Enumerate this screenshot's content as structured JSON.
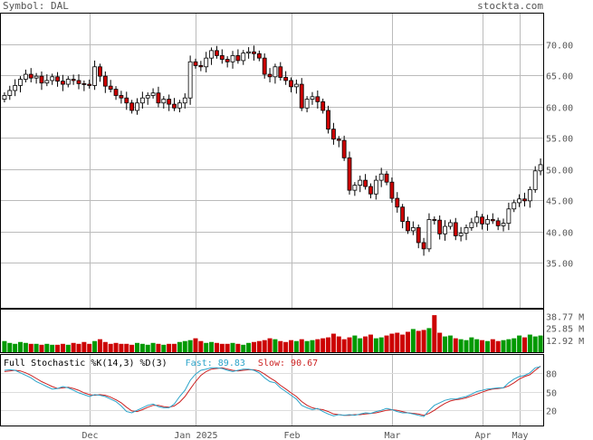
{
  "header": {
    "symbol_label": "Symbol: DAL",
    "site": "stockta.com"
  },
  "stochastic": {
    "label": "Full Stochastic %K(14,3) %D(3)",
    "fast_label": "Fast: 89.83",
    "slow_label": "Slow: 90.67",
    "levels": [
      "80",
      "50",
      "20"
    ]
  },
  "colors": {
    "up": "#ffffff",
    "down": "#cc0000",
    "vol_up": "#009900",
    "vol_down": "#cc0000",
    "fast": "#2aa3c9",
    "slow": "#cc2222",
    "grid": "#bbbbbb"
  },
  "chart_data": {
    "type": "candlestick",
    "price_ticks": [
      "70.00",
      "65.00",
      "60.00",
      "55.00",
      "50.00",
      "45.00",
      "40.00",
      "35.00"
    ],
    "volume_ticks": [
      "38.77 M",
      "25.85 M",
      "12.92 M"
    ],
    "x_labels": [
      "Dec",
      "Jan 2025",
      "Feb",
      "Mar",
      "Apr",
      "May"
    ],
    "ylim": [
      30.5,
      75
    ],
    "closes": [
      61.8,
      62.6,
      63.4,
      64.4,
      65.2,
      64.6,
      64.9,
      63.8,
      64.2,
      64.8,
      64.1,
      63.6,
      64.4,
      64.2,
      63.7,
      63.6,
      63.4,
      66.4,
      64.9,
      63.3,
      62.8,
      61.8,
      61.4,
      60.6,
      59.4,
      60.6,
      61.4,
      61.8,
      62.2,
      60.6,
      61.2,
      60.4,
      59.8,
      60.6,
      61.4,
      67.2,
      66.6,
      66.4,
      67.8,
      69.0,
      68.2,
      67.6,
      67.2,
      68.2,
      67.4,
      68.6,
      68.8,
      68.5,
      67.8,
      65.2,
      64.8,
      66.4,
      64.7,
      64.2,
      63.2,
      63.6,
      59.8,
      61.2,
      61.6,
      60.8,
      59.4,
      56.4,
      54.8,
      54.6,
      51.8,
      46.6,
      47.4,
      48.2,
      47.2,
      46.0,
      48.2,
      49.2,
      47.9,
      45.3,
      43.9,
      41.6,
      40.1,
      40.6,
      38.2,
      37.2,
      41.9,
      41.8,
      39.6,
      40.8,
      41.4,
      39.3,
      39.7,
      40.6,
      41.4,
      42.3,
      41.2,
      41.9,
      41.7,
      40.9,
      41.3,
      43.6,
      44.6,
      45.2,
      44.9,
      46.7,
      49.7,
      50.7
    ],
    "volume_millions": [
      12,
      10,
      9,
      11,
      10,
      9,
      9,
      8,
      9,
      8,
      8,
      9,
      8,
      10,
      9,
      11,
      9,
      12,
      14,
      11,
      9,
      10,
      9,
      9,
      8,
      10,
      9,
      8,
      10,
      9,
      8,
      9,
      9,
      11,
      12,
      13,
      15,
      12,
      10,
      11,
      10,
      9,
      9,
      10,
      9,
      8,
      10,
      11,
      12,
      13,
      15,
      14,
      12,
      11,
      13,
      12,
      14,
      12,
      13,
      14,
      15,
      16,
      20,
      17,
      14,
      16,
      18,
      15,
      17,
      19,
      15,
      16,
      18,
      20,
      21,
      19,
      22,
      25,
      23,
      24,
      26,
      40,
      21,
      17,
      18,
      15,
      14,
      13,
      16,
      14,
      13,
      12,
      14,
      12,
      13,
      14,
      15,
      18,
      16,
      19,
      17,
      18
    ],
    "stoch_fast": [
      84,
      85,
      84,
      80,
      76,
      72,
      66,
      62,
      58,
      54,
      55,
      58,
      56,
      52,
      48,
      45,
      42,
      45,
      44,
      42,
      38,
      34,
      27,
      18,
      16,
      20,
      24,
      28,
      30,
      26,
      24,
      24,
      30,
      42,
      52,
      68,
      78,
      84,
      86,
      88,
      88,
      87,
      84,
      82,
      84,
      86,
      86,
      84,
      80,
      72,
      66,
      64,
      56,
      50,
      44,
      38,
      28,
      24,
      21,
      23,
      18,
      14,
      11,
      13,
      12,
      13,
      12,
      14,
      16,
      15,
      18,
      20,
      23,
      21,
      18,
      16,
      16,
      14,
      12,
      10,
      20,
      28,
      32,
      36,
      38,
      38,
      40,
      42,
      46,
      50,
      52,
      54,
      55,
      56,
      56,
      64,
      70,
      74,
      76,
      80,
      88,
      89.83
    ],
    "stoch_slow": [
      82,
      83,
      84,
      83,
      80,
      76,
      71,
      66,
      62,
      58,
      55,
      56,
      57,
      55,
      52,
      48,
      45,
      44,
      45,
      44,
      41,
      37,
      32,
      25,
      19,
      18,
      21,
      25,
      28,
      28,
      26,
      25,
      27,
      33,
      42,
      54,
      66,
      76,
      82,
      86,
      87,
      88,
      86,
      84,
      83,
      84,
      85,
      85,
      83,
      78,
      72,
      67,
      60,
      54,
      48,
      42,
      34,
      28,
      24,
      22,
      21,
      18,
      14,
      13,
      12,
      12,
      13,
      13,
      14,
      15,
      16,
      18,
      20,
      21,
      20,
      18,
      16,
      15,
      14,
      12,
      15,
      20,
      26,
      31,
      35,
      37,
      38,
      40,
      43,
      46,
      49,
      52,
      54,
      55,
      56,
      59,
      64,
      70,
      74,
      77,
      84,
      90.67
    ]
  }
}
